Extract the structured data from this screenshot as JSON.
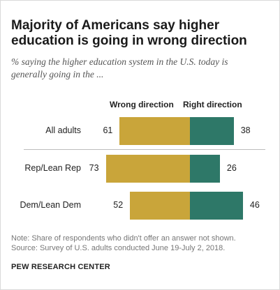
{
  "title_lines": [
    "Majority of Americans say higher",
    "education is going in wrong direction"
  ],
  "subtitle_lines": [
    "% saying the higher education system in the U.S. today is",
    "generally going in the ..."
  ],
  "colors": {
    "wrong": "#c9a53a",
    "right": "#2e7868"
  },
  "chart_data": {
    "type": "bar",
    "orientation": "horizontal-diverging",
    "categories": [
      "All adults",
      "Rep/Lean Rep",
      "Dem/Lean Dem"
    ],
    "series": [
      {
        "name": "Wrong direction",
        "values": [
          61,
          73,
          52
        ]
      },
      {
        "name": "Right direction",
        "values": [
          38,
          26,
          46
        ]
      }
    ]
  },
  "note_lines": [
    "Note: Share of respondents who didn't offer an answer not shown.",
    "Source: Survey of U.S. adults conducted June 19-July 2, 2018."
  ],
  "source_org": "PEW RESEARCH CENTER"
}
